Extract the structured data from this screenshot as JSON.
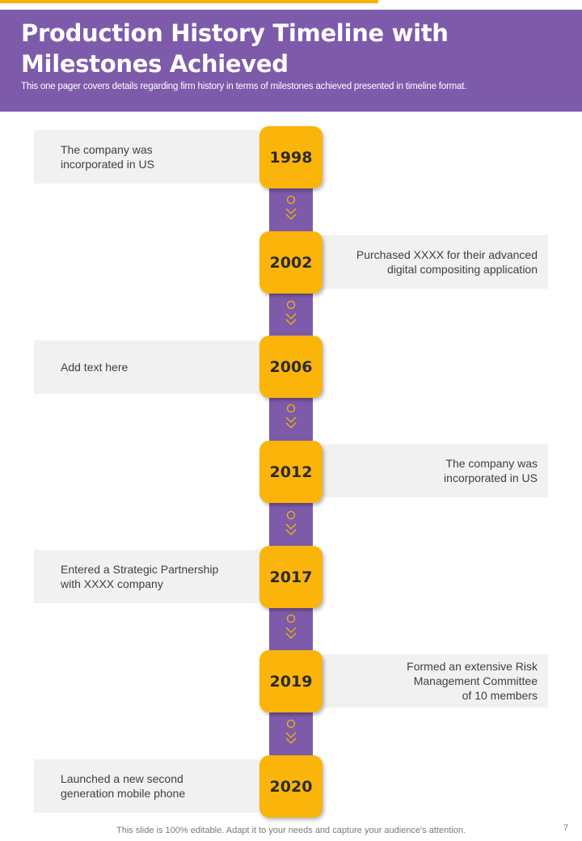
{
  "header": {
    "title": "Production History Timeline with Milestones Achieved",
    "subtitle": "This one pager covers details regarding firm history in terms of milestones achieved presented in timeline format."
  },
  "colors": {
    "accent": "#F5B400",
    "purple": "#7D5BAA",
    "year_box": "#FBB40A",
    "text_box": "#F1F1F1"
  },
  "milestones": [
    {
      "year": "1998",
      "side": "left",
      "text": "The company was\nincorporated in US"
    },
    {
      "year": "2002",
      "side": "right",
      "text": "Purchased XXXX  for their advanced\ndigital compositing application"
    },
    {
      "year": "2006",
      "side": "left",
      "text": "Add text here"
    },
    {
      "year": "2012",
      "side": "right",
      "text": "The company was\nincorporated in US"
    },
    {
      "year": "2017",
      "side": "left",
      "text": "Entered a Strategic Partnership\nwith XXXX  company"
    },
    {
      "year": "2019",
      "side": "right",
      "text": "Formed an extensive Risk\nManagement Committee\nof 10 members"
    },
    {
      "year": "2020",
      "side": "left",
      "text": "Launched a new second\ngeneration mobile phone"
    }
  ],
  "footer": {
    "note": "This slide is 100% editable. Adapt it to your needs and capture your audience's attention.",
    "page_number": "7"
  }
}
